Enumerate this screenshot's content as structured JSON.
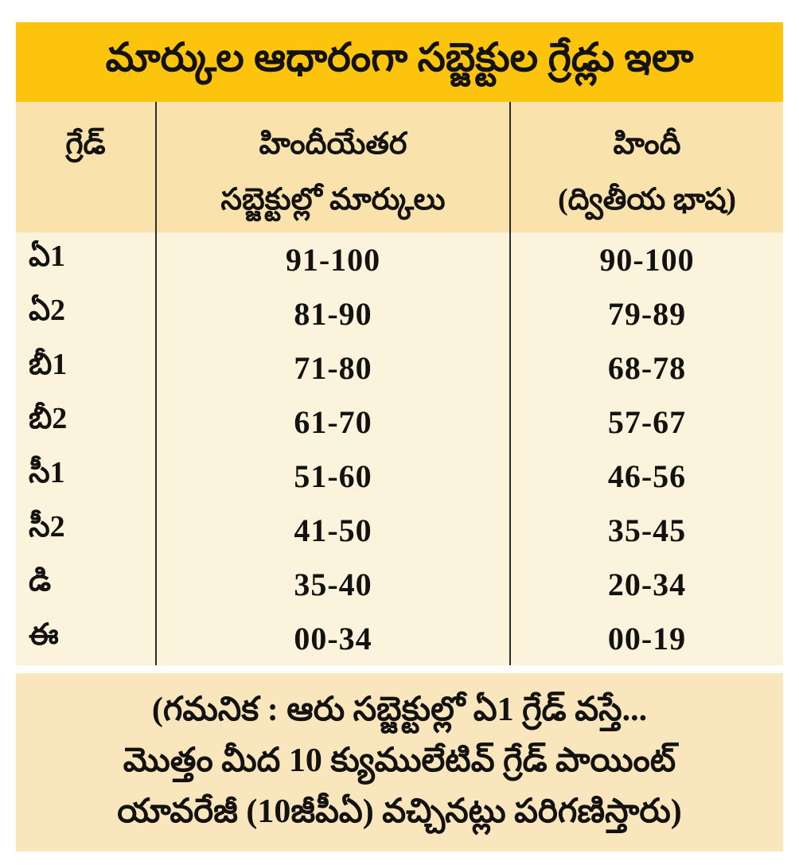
{
  "title": "మార్కుల ఆధారంగా సబ్జెక్టుల గ్రేడ్లు ఇలా",
  "colors": {
    "title_band_bg": "#FCC40D",
    "header_band_bg": "#F9E2AB",
    "body_bg": "#FCF3DC",
    "footer_band_bg": "#FAE6BD",
    "text": "#141210",
    "divider": "#2B2B2B"
  },
  "table": {
    "columns": [
      {
        "id": "grade",
        "lines": [
          "గ్రేడ్"
        ]
      },
      {
        "id": "non_hindi_marks",
        "lines": [
          "హిందీయేతర",
          "సబ్జెక్టుల్లో మార్కులు"
        ]
      },
      {
        "id": "hindi_marks",
        "lines": [
          "హిందీ",
          "(ద్వితీయ భాష)"
        ]
      }
    ],
    "rows": [
      {
        "grade": "ఏ1",
        "non_hindi_marks": "91-100",
        "hindi_marks": "90-100"
      },
      {
        "grade": "ఏ2",
        "non_hindi_marks": "81-90",
        "hindi_marks": "79-89"
      },
      {
        "grade": "బీ1",
        "non_hindi_marks": "71-80",
        "hindi_marks": "68-78"
      },
      {
        "grade": "బీ2",
        "non_hindi_marks": "61-70",
        "hindi_marks": "57-67"
      },
      {
        "grade": "సీ1",
        "non_hindi_marks": "51-60",
        "hindi_marks": "46-56"
      },
      {
        "grade": "సీ2",
        "non_hindi_marks": "41-50",
        "hindi_marks": "35-45"
      },
      {
        "grade": "డి",
        "non_hindi_marks": "35-40",
        "hindi_marks": "20-34"
      },
      {
        "grade": "ఈ",
        "non_hindi_marks": "00-34",
        "hindi_marks": "00-19"
      }
    ]
  },
  "note": {
    "lines": [
      "(గమనిక : ఆరు సబ్జెక్టుల్లో ఏ1 గ్రేడ్ వస్తే...",
      "మొత్తం మీద 10 క్యుములేటివ్ గ్రేడ్ పాయింట్",
      "యావరేజీ (10జీపీఏ) వచ్చినట్లు పరిగణిస్తారు)"
    ]
  }
}
